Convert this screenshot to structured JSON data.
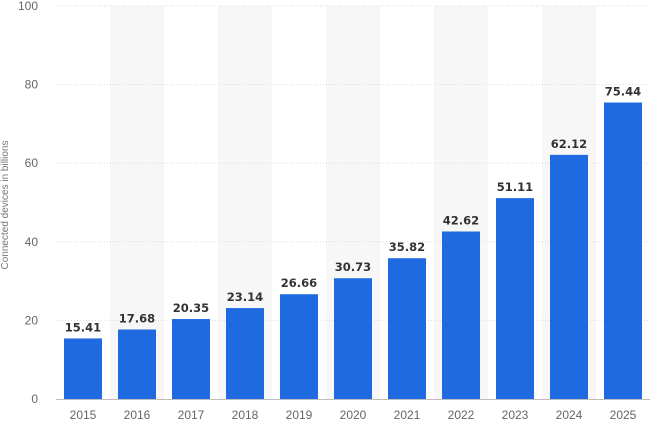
{
  "chart_data": {
    "type": "bar",
    "categories": [
      "2015",
      "2016",
      "2017",
      "2018",
      "2019",
      "2020",
      "2021",
      "2022",
      "2023",
      "2024",
      "2025"
    ],
    "values": [
      15.41,
      17.68,
      20.35,
      23.14,
      26.66,
      30.73,
      35.82,
      42.62,
      51.11,
      62.12,
      75.44
    ],
    "value_labels": [
      "15.41",
      "17.68",
      "20.35",
      "23.14",
      "26.66",
      "30.73",
      "35.82",
      "42.62",
      "51.11",
      "62.12",
      "75.44"
    ],
    "title": "",
    "xlabel": "",
    "ylabel": "Connected devices in billions",
    "ylim": [
      0,
      100
    ],
    "yticks": [
      0,
      20,
      40,
      60,
      80,
      100
    ],
    "ytick_labels": [
      "0",
      "20",
      "40",
      "60",
      "80",
      "100"
    ],
    "grid": true,
    "legend": "none",
    "colors": {
      "bar": "#1f6ae0",
      "band": "#f7f7f7",
      "grid": "#d9d9d9",
      "axis": "#bdbdbd"
    }
  }
}
